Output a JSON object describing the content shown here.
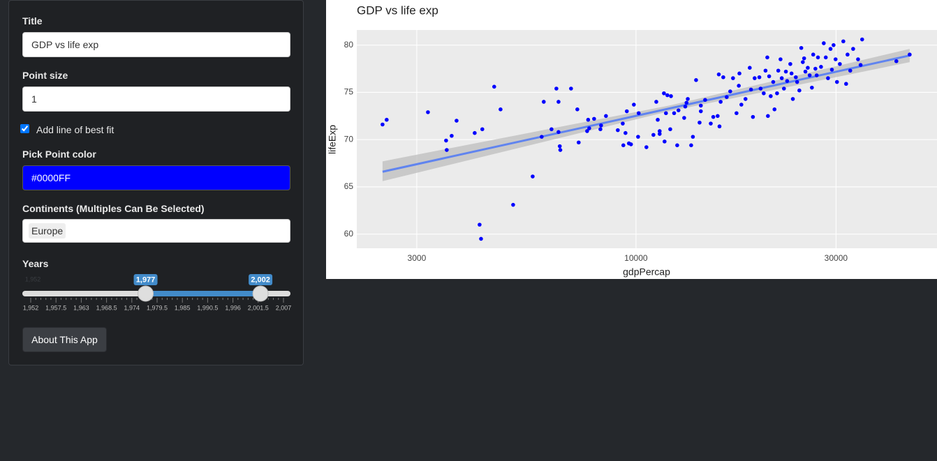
{
  "sidebar": {
    "title_label": "Title",
    "title_value": "GDP vs life exp",
    "size_label": "Point size",
    "size_value": "1",
    "fit_label": "Add line of best fit",
    "fit_checked": true,
    "color_label": "Pick Point color",
    "color_value": "#0000FF",
    "continents_label": "Continents (Multiples Can Be Selected)",
    "continents": [
      "Europe"
    ],
    "years_label": "Years",
    "years": {
      "min": 1952,
      "max": 2007,
      "from": 1977,
      "to": 2002,
      "min_label": "1,952",
      "from_label": "1,977",
      "to_label": "2,002",
      "tick_labels": [
        "1,952",
        "1,957.5",
        "1,963",
        "1,968.5",
        "1,974",
        "1,979.5",
        "1,985",
        "1,990.5",
        "1,996",
        "2,001.5",
        "2,007"
      ]
    },
    "button": "About This App"
  },
  "chart_data": {
    "type": "scatter",
    "title": "GDP vs life exp",
    "x_label": "gdpPercap",
    "y_label": "lifeExp",
    "xlog": true,
    "grid": true,
    "xlim": [
      2158,
      52240
    ],
    "ylim": [
      58.5,
      81.6
    ],
    "xticks": [
      3000,
      10000,
      30000
    ],
    "yticks": [
      60,
      65,
      70,
      75,
      80
    ],
    "series": [
      {
        "color": "#0000FF",
        "x": [
          2486,
          2543,
          3190,
          3524,
          3537,
          3634,
          3733,
          4124,
          4236,
          4270,
          4300,
          4590,
          4753,
          5093,
          5670,
          5958,
          6026,
          6288,
          6459,
          6535,
          6535,
          6580,
          6600,
          7000,
          7246,
          7300,
          7646,
          7690,
          7735,
          7945,
          8225,
          8255,
          8480,
          9050,
          9300,
          9330,
          9440,
          9510,
          9620,
          9730,
          9885,
          10116,
          10150,
          10590,
          11006,
          11180,
          11270,
          11390,
          11390,
          11660,
          11700,
          11790,
          11880,
          12070,
          12120,
          12330,
          12540,
          12630,
          13030,
          13110,
          13200,
          13290,
          13540,
          13670,
          13910,
          14180,
          14280,
          14280,
          14620,
          15080,
          15290,
          15660,
          15760,
          15820,
          15920,
          16150,
          16460,
          16780,
          17040,
          17370,
          17590,
          17650,
          17840,
          18250,
          18680,
          18810,
          19010,
          19190,
          19690,
          19830,
          20170,
          20370,
          20570,
          20640,
          20780,
          20960,
          21250,
          21400,
          21700,
          21850,
          22120,
          22270,
          22540,
          22780,
          22940,
          23340,
          23500,
          23670,
          24060,
          24230,
          24530,
          24790,
          25000,
          25180,
          25360,
          25690,
          25960,
          26280,
          26470,
          26790,
          26980,
          27170,
          27630,
          28050,
          28360,
          28710,
          29110,
          29330,
          29600,
          29930,
          30160,
          30640,
          31230,
          31710,
          31960,
          32440,
          32960,
          33860,
          34340,
          34630,
          41790,
          44960
        ],
        "values": [
          71.6,
          72.1,
          72.9,
          69.9,
          68.9,
          70.4,
          72.0,
          70.7,
          61.0,
          59.5,
          71.1,
          75.6,
          73.2,
          63.1,
          66.1,
          70.3,
          74.0,
          71.1,
          75.4,
          74.0,
          70.8,
          69.3,
          68.9,
          75.4,
          73.2,
          69.7,
          70.9,
          72.1,
          71.2,
          72.2,
          71.1,
          71.5,
          72.5,
          71.0,
          71.7,
          69.4,
          70.7,
          73.0,
          69.6,
          69.5,
          73.7,
          70.3,
          72.8,
          69.2,
          70.5,
          74.0,
          72.1,
          70.6,
          70.9,
          74.9,
          69.8,
          72.8,
          74.7,
          71.1,
          74.6,
          72.8,
          69.4,
          73.1,
          72.3,
          73.5,
          73.9,
          74.3,
          69.4,
          70.3,
          76.3,
          71.8,
          73.0,
          73.6,
          74.2,
          71.7,
          72.4,
          72.5,
          76.9,
          71.4,
          74.0,
          76.6,
          74.5,
          75.1,
          76.5,
          72.8,
          75.7,
          77.0,
          73.7,
          74.3,
          77.6,
          75.3,
          72.4,
          76.5,
          76.6,
          75.4,
          74.9,
          77.3,
          78.7,
          72.5,
          76.7,
          74.6,
          76.1,
          73.2,
          74.9,
          77.3,
          78.5,
          76.5,
          75.4,
          77.2,
          76.2,
          78.0,
          77.0,
          74.3,
          76.6,
          76.1,
          75.2,
          79.7,
          78.2,
          78.6,
          77.2,
          77.6,
          76.8,
          75.5,
          79.0,
          77.5,
          76.8,
          78.7,
          77.7,
          80.2,
          78.7,
          76.5,
          79.6,
          77.4,
          80.0,
          78.5,
          76.1,
          78.0,
          80.4,
          75.9,
          79.0,
          77.3,
          79.6,
          78.5,
          77.9,
          80.6,
          78.3,
          79.0
        ]
      }
    ],
    "fit": {
      "color": "#3366FF",
      "x": [
        2486,
        44960
      ],
      "values": [
        66.6,
        78.9
      ]
    },
    "band": {
      "color": "#bdbdbd",
      "x": [
        2486,
        12000,
        44960
      ],
      "lower": [
        65.6,
        73.0,
        78.2
      ],
      "upper": [
        67.7,
        73.6,
        79.6
      ]
    }
  }
}
